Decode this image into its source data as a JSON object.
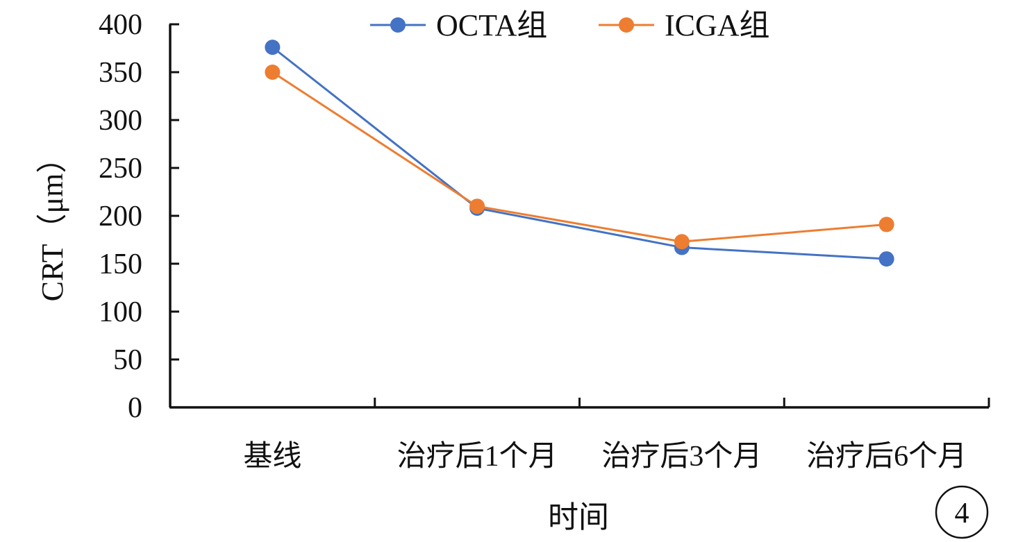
{
  "chart_data": {
    "type": "line",
    "title": "",
    "xlabel": "时间",
    "ylabel": "CRT（μm）",
    "categories": [
      "基线",
      "治疗后1个月",
      "治疗后3个月",
      "治疗后6个月"
    ],
    "series": [
      {
        "name": "OCTA组",
        "color": "#4472C4",
        "values": [
          376,
          208,
          167,
          155
        ]
      },
      {
        "name": "ICGA组",
        "color": "#ED7D31",
        "values": [
          350,
          210,
          173,
          191
        ]
      }
    ],
    "ylim": [
      0,
      400
    ],
    "yticks": [
      0,
      50,
      100,
      150,
      200,
      250,
      300,
      350,
      400
    ],
    "grid": false,
    "legend_position": "top"
  },
  "figure": {
    "panel_label": "4"
  }
}
